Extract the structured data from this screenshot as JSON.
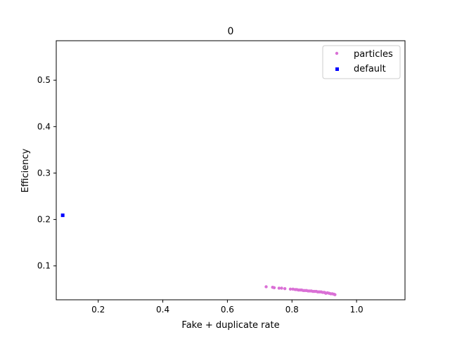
{
  "chart_data": {
    "type": "scatter",
    "title": "0",
    "xlabel": "Fake + duplicate rate",
    "ylabel": "Efficiency",
    "xlim": [
      0.07,
      1.15
    ],
    "ylim": [
      0.027,
      0.585
    ],
    "xticks": [
      0.2,
      0.4,
      0.6,
      0.8,
      1.0
    ],
    "xtick_labels": [
      "0.2",
      "0.4",
      "0.6",
      "0.8",
      "1.0"
    ],
    "yticks": [
      0.1,
      0.2,
      0.3,
      0.4,
      0.5
    ],
    "ytick_labels": [
      "0.1",
      "0.2",
      "0.3",
      "0.4",
      "0.5"
    ],
    "grid": false,
    "legend_position": "top-right",
    "series": [
      {
        "name": "particles",
        "marker": "circle",
        "color": "#da70d6",
        "points": [
          [
            0.72,
            0.055
          ],
          [
            0.74,
            0.054
          ],
          [
            0.745,
            0.053
          ],
          [
            0.76,
            0.052
          ],
          [
            0.768,
            0.052
          ],
          [
            0.778,
            0.051
          ],
          [
            0.795,
            0.05
          ],
          [
            0.803,
            0.05
          ],
          [
            0.81,
            0.049
          ],
          [
            0.815,
            0.049
          ],
          [
            0.82,
            0.048
          ],
          [
            0.825,
            0.048
          ],
          [
            0.83,
            0.048
          ],
          [
            0.835,
            0.047
          ],
          [
            0.84,
            0.047
          ],
          [
            0.845,
            0.047
          ],
          [
            0.85,
            0.046
          ],
          [
            0.855,
            0.046
          ],
          [
            0.86,
            0.046
          ],
          [
            0.865,
            0.045
          ],
          [
            0.87,
            0.045
          ],
          [
            0.875,
            0.045
          ],
          [
            0.88,
            0.044
          ],
          [
            0.885,
            0.044
          ],
          [
            0.89,
            0.044
          ],
          [
            0.895,
            0.043
          ],
          [
            0.9,
            0.043
          ],
          [
            0.903,
            0.042
          ],
          [
            0.905,
            0.041
          ],
          [
            0.91,
            0.042
          ],
          [
            0.915,
            0.041
          ],
          [
            0.92,
            0.04
          ],
          [
            0.925,
            0.04
          ],
          [
            0.93,
            0.039
          ],
          [
            0.933,
            0.038
          ]
        ]
      },
      {
        "name": "default",
        "marker": "square",
        "color": "#0000ff",
        "points": [
          [
            0.09,
            0.209
          ]
        ]
      }
    ]
  }
}
